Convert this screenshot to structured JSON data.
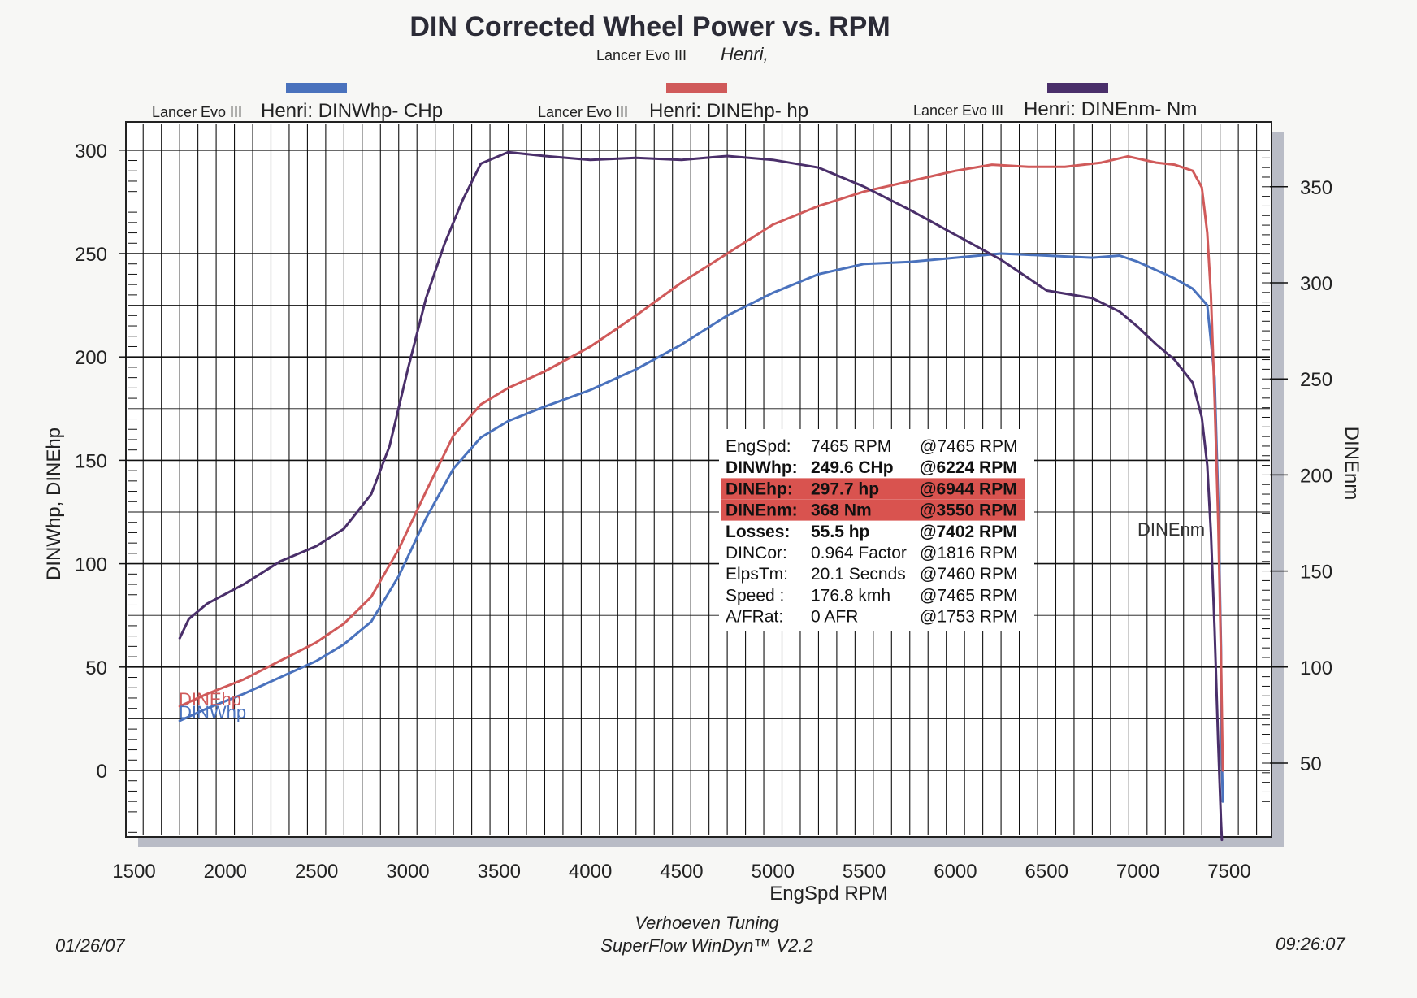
{
  "header": {
    "title": "DIN Corrected Wheel Power vs. RPM",
    "run_prefix": "Lancer Evo III",
    "run_name": "Henri,"
  },
  "legend": [
    {
      "prefix": "Lancer Evo III",
      "label": "Henri: DINWhp- CHp",
      "color": "#4a72bd"
    },
    {
      "prefix": "Lancer Evo III",
      "label": "Henri: DINEhp-  hp",
      "color": "#d05a5a"
    },
    {
      "prefix": "Lancer Evo III",
      "label": "Henri: DINEnm-  Nm",
      "color": "#4a2f6a"
    }
  ],
  "info_box": {
    "rows": [
      {
        "label": "EngSpd:",
        "value": "7465 RPM",
        "at": "@7465 RPM",
        "bold": false,
        "highlight": false
      },
      {
        "label": "DINWhp:",
        "value": "249.6 CHp",
        "at": "@6224 RPM",
        "bold": true,
        "highlight": false
      },
      {
        "label": "DINEhp:",
        "value": "297.7 hp",
        "at": "@6944 RPM",
        "bold": true,
        "highlight": true
      },
      {
        "label": "DINEnm:",
        "value": "368 Nm",
        "at": "@3550 RPM",
        "bold": true,
        "highlight": true
      },
      {
        "label": "Losses:",
        "value": "55.5 hp",
        "at": "@7402 RPM",
        "bold": true,
        "highlight": false
      },
      {
        "label": "DINCor:",
        "value": "0.964 Factor",
        "at": "@1816 RPM",
        "bold": false,
        "highlight": false
      },
      {
        "label": "ElpsTm:",
        "value": "20.1 Secnds",
        "at": "@7460 RPM",
        "bold": false,
        "highlight": false
      },
      {
        "label": "Speed :",
        "value": "176.8 kmh",
        "at": "@7465 RPM",
        "bold": false,
        "highlight": false
      },
      {
        "label": "A/FRat:",
        "value": "0 AFR",
        "at": "@1753 RPM",
        "bold": false,
        "highlight": false
      }
    ],
    "highlight_color": "#d9534f"
  },
  "footer": {
    "date": "01/26/07",
    "time": "09:26:07",
    "company": "Verhoeven Tuning",
    "software": "SuperFlow WinDyn™ V2.2"
  },
  "chart_data": {
    "type": "line",
    "title": "DIN Corrected Wheel Power vs. RPM",
    "xlabel": "EngSpd  RPM",
    "ylabel": "DINWhp, DINEhp",
    "ylabel_right": "DINEnm",
    "xlim": [
      1500,
      7700
    ],
    "ylim": [
      -33,
      303
    ],
    "ylim_right": [
      17,
      369
    ],
    "x_ticks": [
      "1500",
      "2000",
      "2500",
      "3000",
      "3500",
      "4000",
      "4500",
      "5000",
      "5500",
      "6000",
      "6500",
      "7000",
      "7500"
    ],
    "y_ticks": [
      "0",
      "50",
      "100",
      "150",
      "200",
      "250",
      "300"
    ],
    "y_ticks_right": [
      "50",
      "100",
      "150",
      "200",
      "250",
      "300",
      "350"
    ],
    "grid": true,
    "series": [
      {
        "name": "DINWhp",
        "axis": "left",
        "color": "#4a72bd",
        "label_text": "DINWhp",
        "x": [
          1750,
          1900,
          2100,
          2300,
          2500,
          2650,
          2800,
          2950,
          3100,
          3250,
          3400,
          3550,
          3750,
          4000,
          4250,
          4500,
          4750,
          5000,
          5250,
          5500,
          5750,
          6000,
          6250,
          6500,
          6750,
          6900,
          7000,
          7100,
          7200,
          7300,
          7380,
          7420,
          7440,
          7455,
          7460,
          7465
        ],
        "y": [
          24,
          30,
          37,
          45,
          53,
          61,
          72,
          94,
          122,
          146,
          161,
          169,
          176,
          184,
          194,
          206,
          220,
          231,
          240,
          245,
          246,
          248,
          250,
          249,
          248,
          249,
          246,
          242,
          238,
          233,
          225,
          190,
          130,
          60,
          5,
          -15
        ]
      },
      {
        "name": "DINEhp",
        "axis": "left",
        "color": "#d05a5a",
        "label_text": "DINEhp",
        "x": [
          1750,
          1900,
          2100,
          2300,
          2500,
          2650,
          2800,
          2950,
          3100,
          3250,
          3400,
          3550,
          3750,
          4000,
          4250,
          4500,
          4750,
          5000,
          5250,
          5500,
          5750,
          6000,
          6200,
          6400,
          6600,
          6800,
          6944,
          7100,
          7200,
          7300,
          7350,
          7380,
          7400,
          7420,
          7440,
          7455,
          7465
        ],
        "y": [
          31,
          37,
          44,
          53,
          62,
          71,
          84,
          107,
          135,
          162,
          177,
          185,
          193,
          205,
          220,
          236,
          250,
          264,
          273,
          280,
          285,
          290,
          293,
          292,
          292,
          294,
          297,
          294,
          293,
          290,
          282,
          260,
          230,
          180,
          120,
          55,
          0
        ]
      },
      {
        "name": "DINEnm",
        "axis": "right",
        "color": "#4a2f6a",
        "label_text": "DINEnm",
        "x": [
          1750,
          1800,
          1900,
          2100,
          2300,
          2500,
          2650,
          2800,
          2900,
          3000,
          3100,
          3200,
          3300,
          3400,
          3550,
          3750,
          4000,
          4250,
          4500,
          4750,
          5000,
          5250,
          5500,
          5750,
          6000,
          6250,
          6500,
          6750,
          6900,
          7000,
          7100,
          7200,
          7300,
          7350,
          7380,
          7400,
          7420,
          7440,
          7455,
          7460
        ],
        "y": [
          115,
          125,
          133,
          143,
          155,
          163,
          172,
          190,
          215,
          255,
          292,
          320,
          343,
          362,
          368,
          366,
          364,
          365,
          364,
          366,
          364,
          360,
          350,
          338,
          325,
          312,
          296,
          292,
          285,
          277,
          268,
          260,
          248,
          230,
          205,
          170,
          120,
          60,
          20,
          10
        ]
      }
    ]
  }
}
